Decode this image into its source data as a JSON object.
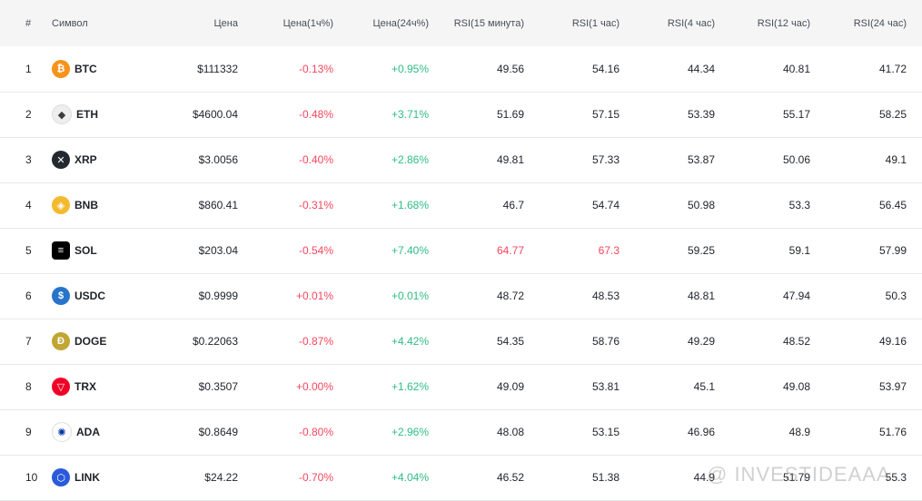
{
  "header": {
    "index": "#",
    "symbol": "Символ",
    "price": "Цена",
    "price_1h": "Цена(1ч%)",
    "price_24h": "Цена(24ч%)",
    "rsi_15m": "RSI(15 минута)",
    "rsi_1h": "RSI(1 час)",
    "rsi_4h": "RSI(4 час)",
    "rsi_12h": "RSI(12 час)",
    "rsi_24h": "RSI(24 час)"
  },
  "rows": [
    {
      "index": "1",
      "symbol": "BTC",
      "icon": "bitcoin-icon",
      "color": "#f7931a",
      "glyph": "₿",
      "price": "$111332",
      "ch1h": "-0.13%",
      "ch24h": "+0.95%",
      "rsi15m": "49.56",
      "rsi1h": "54.16",
      "rsi4h": "44.34",
      "rsi12h": "40.81",
      "rsi24h": "41.72"
    },
    {
      "index": "2",
      "symbol": "ETH",
      "icon": "ethereum-icon",
      "color": "#eeeeee",
      "glyph": "◆",
      "price": "$4600.04",
      "ch1h": "-0.48%",
      "ch24h": "+3.71%",
      "rsi15m": "51.69",
      "rsi1h": "57.15",
      "rsi4h": "53.39",
      "rsi12h": "55.17",
      "rsi24h": "58.25"
    },
    {
      "index": "3",
      "symbol": "XRP",
      "icon": "xrp-icon",
      "color": "#23292f",
      "glyph": "✕",
      "price": "$3.0056",
      "ch1h": "-0.40%",
      "ch24h": "+2.86%",
      "rsi15m": "49.81",
      "rsi1h": "57.33",
      "rsi4h": "53.87",
      "rsi12h": "50.06",
      "rsi24h": "49.1"
    },
    {
      "index": "4",
      "symbol": "BNB",
      "icon": "bnb-icon",
      "color": "#f3ba2f",
      "glyph": "◈",
      "price": "$860.41",
      "ch1h": "-0.31%",
      "ch24h": "+1.68%",
      "rsi15m": "46.7",
      "rsi1h": "54.74",
      "rsi4h": "50.98",
      "rsi12h": "53.3",
      "rsi24h": "56.45"
    },
    {
      "index": "5",
      "symbol": "SOL",
      "icon": "solana-icon",
      "color": "#000000",
      "glyph": "≡",
      "price": "$203.04",
      "ch1h": "-0.54%",
      "ch24h": "+7.40%",
      "rsi15m": "64.77",
      "rsi1h": "67.3",
      "rsi4h": "59.25",
      "rsi12h": "59.1",
      "rsi24h": "57.99"
    },
    {
      "index": "6",
      "symbol": "USDC",
      "icon": "usdc-icon",
      "color": "#2775ca",
      "glyph": "$",
      "price": "$0.9999",
      "ch1h": "+0.01%",
      "ch24h": "+0.01%",
      "rsi15m": "48.72",
      "rsi1h": "48.53",
      "rsi4h": "48.81",
      "rsi12h": "47.94",
      "rsi24h": "50.3"
    },
    {
      "index": "7",
      "symbol": "DOGE",
      "icon": "dogecoin-icon",
      "color": "#c2a633",
      "glyph": "Ð",
      "price": "$0.22063",
      "ch1h": "-0.87%",
      "ch24h": "+4.42%",
      "rsi15m": "54.35",
      "rsi1h": "58.76",
      "rsi4h": "49.29",
      "rsi12h": "48.52",
      "rsi24h": "49.16"
    },
    {
      "index": "8",
      "symbol": "TRX",
      "icon": "tron-icon",
      "color": "#ef0027",
      "glyph": "▽",
      "price": "$0.3507",
      "ch1h": "+0.00%",
      "ch24h": "+1.62%",
      "rsi15m": "49.09",
      "rsi1h": "53.81",
      "rsi4h": "45.1",
      "rsi12h": "49.08",
      "rsi24h": "53.97"
    },
    {
      "index": "9",
      "symbol": "ADA",
      "icon": "cardano-icon",
      "color": "#ffffff",
      "glyph": "✺",
      "price": "$0.8649",
      "ch1h": "-0.80%",
      "ch24h": "+2.96%",
      "rsi15m": "48.08",
      "rsi1h": "53.15",
      "rsi4h": "46.96",
      "rsi12h": "48.9",
      "rsi24h": "51.76"
    },
    {
      "index": "10",
      "symbol": "LINK",
      "icon": "chainlink-icon",
      "color": "#2a5ada",
      "glyph": "⬡",
      "price": "$24.22",
      "ch1h": "-0.70%",
      "ch24h": "+4.04%",
      "rsi15m": "46.52",
      "rsi1h": "51.38",
      "rsi4h": "44.9",
      "rsi12h": "51.79",
      "rsi24h": "55.3"
    }
  ],
  "watermark": "@ INVESTIDEAAA"
}
